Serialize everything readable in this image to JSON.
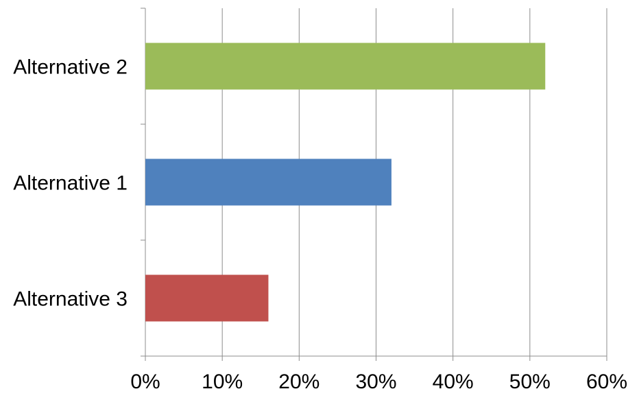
{
  "chart_data": {
    "type": "bar",
    "orientation": "horizontal",
    "title": "",
    "xlabel": "",
    "ylabel": "",
    "categories": [
      "Alternative 2",
      "Alternative 1",
      "Alternative 3"
    ],
    "values": [
      52,
      32,
      16
    ],
    "value_unit": "%",
    "colors": [
      "#9BBB59",
      "#4F81BD",
      "#C0504D"
    ],
    "xlim": [
      0,
      60
    ],
    "xticks": [
      0,
      10,
      20,
      30,
      40,
      50,
      60
    ],
    "xtick_labels": [
      "0%",
      "10%",
      "20%",
      "30%",
      "40%",
      "50%",
      "60%"
    ],
    "grid": "vertical",
    "legend": "none"
  }
}
